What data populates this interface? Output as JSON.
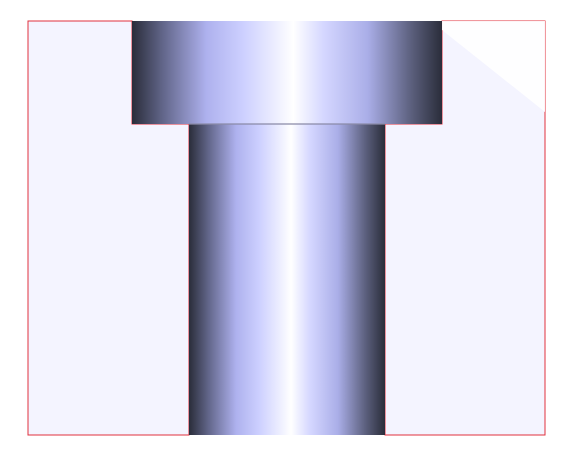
{
  "colors": {
    "background": "#ffffff",
    "block_fill": "#f4f4ff",
    "outline": "#e0303c",
    "seam": "#8a8aa8",
    "cylinder_dark": "#2a2d3a",
    "cylinder_mid": "#7a7ec0",
    "cylinder_light": "#d4d6ff",
    "cylinder_highlight": "#ffffff"
  },
  "parts": {
    "left_block": "solid-block",
    "right_block": "solid-block",
    "head": "cylinder-head",
    "shank": "cylinder-shank"
  }
}
